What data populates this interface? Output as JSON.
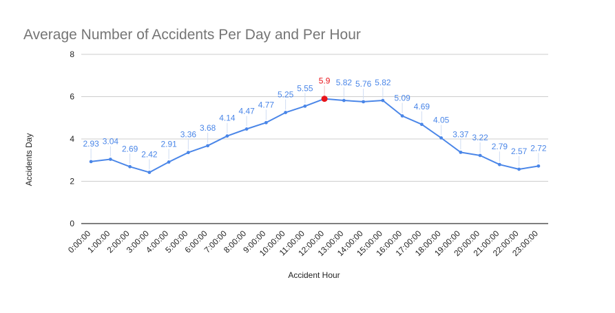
{
  "chart_data": {
    "type": "line",
    "title": "Average Number of Accidents Per Day and Per Hour",
    "xlabel": "Accident Hour",
    "ylabel": "Accidents Day",
    "ylim": [
      0,
      8
    ],
    "yticks": [
      "0",
      "2",
      "4",
      "6",
      "8"
    ],
    "grid": true,
    "legend": "none",
    "categories": [
      "0:00:00",
      "1:00:00",
      "2:00:00",
      "3:00:00",
      "4:00:00",
      "5:00:00",
      "6:00:00",
      "7:00:00",
      "8:00:00",
      "9:00:00",
      "10:00:00",
      "11:00:00",
      "12:00:00",
      "13:00:00",
      "14:00:00",
      "15:00:00",
      "16:00:00",
      "17:00:00",
      "18:00:00",
      "19:00:00",
      "20:00:00",
      "21:00:00",
      "22:00:00",
      "23:00:00"
    ],
    "values": [
      2.93,
      3.04,
      2.69,
      2.42,
      2.91,
      3.36,
      3.68,
      4.14,
      4.47,
      4.77,
      5.25,
      5.55,
      5.9,
      5.82,
      5.76,
      5.82,
      5.09,
      4.69,
      4.05,
      3.37,
      3.22,
      2.79,
      2.57,
      2.72
    ],
    "data_labels": [
      "2.93",
      "3.04",
      "2.69",
      "2.42",
      "2.91",
      "3.36",
      "3.68",
      "4.14",
      "4.47",
      "4.77",
      "5.25",
      "5.55",
      "5.9",
      "5.82",
      "5.76",
      "5.82",
      "5.09",
      "4.69",
      "4.05",
      "3.37",
      "3.22",
      "2.79",
      "2.57",
      "2.72"
    ],
    "highlight_index": 12,
    "colors": {
      "line": "#4a86e8",
      "label": "#4a86e8",
      "highlight": "#e8141a",
      "grid": "#cccccc",
      "axis": "#333333"
    }
  }
}
